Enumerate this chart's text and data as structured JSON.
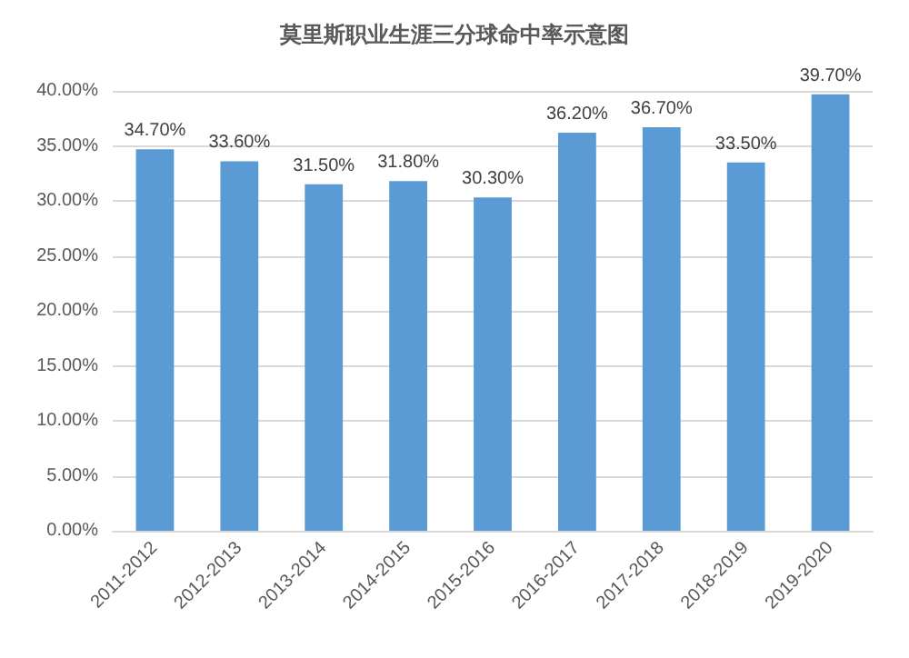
{
  "chart_data": {
    "type": "bar",
    "title": "莫里斯职业生涯三分球命中率示意图",
    "categories": [
      "2011-2012",
      "2012-2013",
      "2013-2014",
      "2014-2015",
      "2015-2016",
      "2016-2017",
      "2017-2018",
      "2018-2019",
      "2019-2020"
    ],
    "values": [
      34.7,
      33.6,
      31.5,
      31.8,
      30.3,
      36.2,
      36.7,
      33.5,
      39.7
    ],
    "value_labels": [
      "34.70%",
      "33.60%",
      "31.50%",
      "31.80%",
      "30.30%",
      "36.20%",
      "36.70%",
      "33.50%",
      "39.70%"
    ],
    "color": "#5b9bd5",
    "ylim": [
      0,
      40
    ],
    "yticks": [
      {
        "value": 0,
        "label": "0.00%"
      },
      {
        "value": 5,
        "label": "5.00%"
      },
      {
        "value": 10,
        "label": "10.00%"
      },
      {
        "value": 15,
        "label": "15.00%"
      },
      {
        "value": 20,
        "label": "20.00%"
      },
      {
        "value": 25,
        "label": "25.00%"
      },
      {
        "value": 30,
        "label": "30.00%"
      },
      {
        "value": 35,
        "label": "35.00%"
      },
      {
        "value": 40,
        "label": "40.00%"
      }
    ],
    "grid": "y"
  }
}
